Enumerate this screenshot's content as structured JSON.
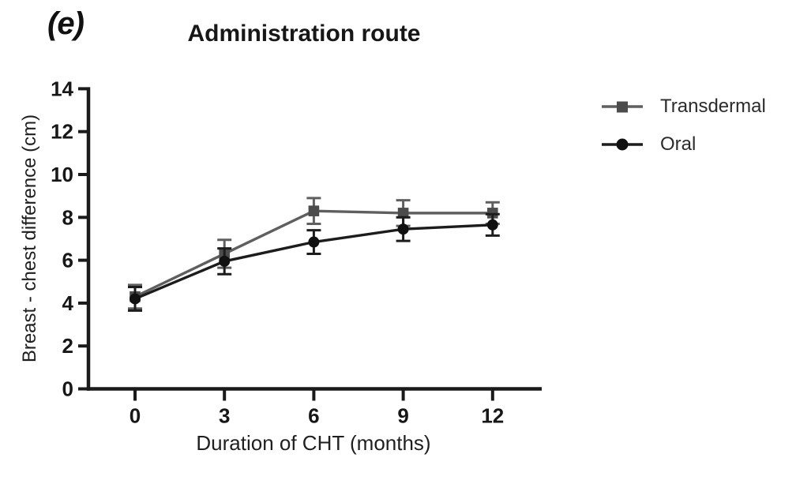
{
  "panel_label": "(e)",
  "title": "Administration route",
  "colors": {
    "axis": "#1a1a1a",
    "tick_text": "#171717",
    "transdermal": "#5f5f5f",
    "oral": "#1c1c1c",
    "background": "#ffffff"
  },
  "legend": {
    "items": [
      {
        "label": "Transdermal",
        "marker": "square"
      },
      {
        "label": "Oral",
        "marker": "circle"
      }
    ]
  },
  "chart_data": {
    "type": "line",
    "title": "Administration route",
    "xlabel": "Duration of CHT (months)",
    "ylabel": "Breast - chest difference (cm)",
    "x": [
      0,
      3,
      6,
      9,
      12
    ],
    "xtick_labels": [
      "0",
      "3",
      "6",
      "9",
      "12"
    ],
    "yticks": [
      0,
      2,
      4,
      6,
      8,
      10,
      12,
      14
    ],
    "ylim": [
      0,
      14
    ],
    "grid": false,
    "legend_position": "right",
    "error_bars": true,
    "series": [
      {
        "name": "Transdermal",
        "marker": "square",
        "color": "#5f5f5f",
        "values": [
          4.3,
          6.3,
          8.3,
          8.2,
          8.2
        ],
        "errors": [
          0.55,
          0.65,
          0.6,
          0.6,
          0.5
        ]
      },
      {
        "name": "Oral",
        "marker": "circle",
        "color": "#1c1c1c",
        "values": [
          4.2,
          5.95,
          6.85,
          7.45,
          7.65
        ],
        "errors": [
          0.55,
          0.6,
          0.55,
          0.55,
          0.5
        ]
      }
    ]
  }
}
